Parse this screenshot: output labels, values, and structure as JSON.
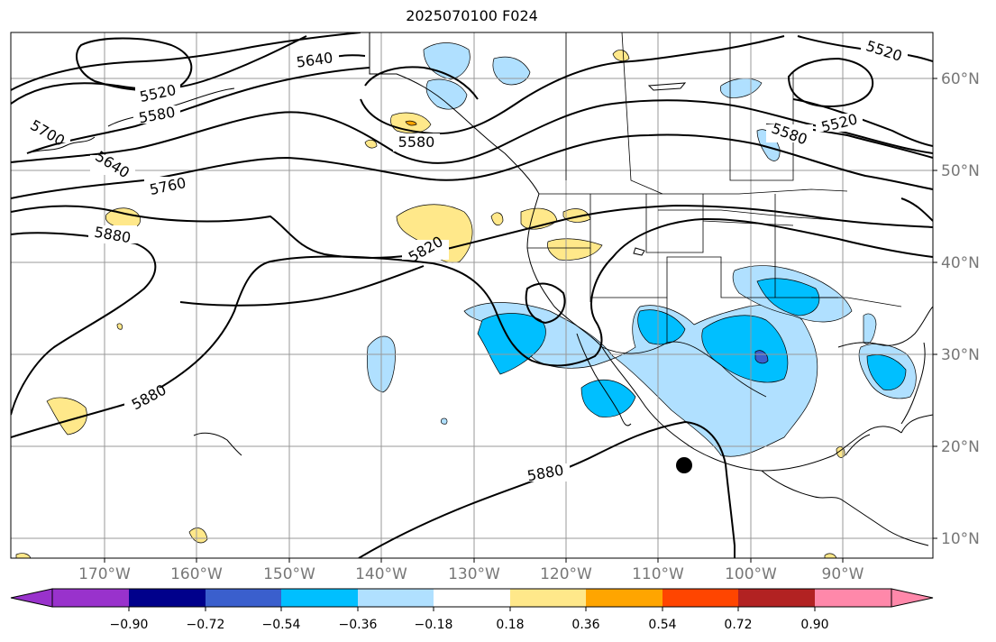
{
  "title": "2025070100 F024",
  "map": {
    "lat_ticks": [
      "60°N",
      "50°N",
      "40°N",
      "30°N",
      "20°N",
      "10°N"
    ],
    "lon_ticks": [
      "170°W",
      "160°W",
      "150°W",
      "140°W",
      "130°W",
      "120°W",
      "110°W",
      "100°W",
      "90°W"
    ],
    "contour_labels": [
      "5640",
      "5520",
      "5580",
      "5700",
      "5640",
      "5760",
      "5880",
      "5580",
      "5820",
      "5880",
      "5880",
      "5520",
      "5580",
      "5520"
    ],
    "marker": "storm-center-dot"
  },
  "colorbar": {
    "tick_labels": [
      "−0.90",
      "−0.72",
      "−0.54",
      "−0.36",
      "−0.18",
      "0.18",
      "0.36",
      "0.54",
      "0.72",
      "0.90"
    ],
    "colors": [
      "#9932cc",
      "#00008b",
      "#3a5fcd",
      "#00bfff",
      "#b0e0ff",
      "#ffffff",
      "#ffe88a",
      "#ffa500",
      "#ff4500",
      "#b22222",
      "#ff88aa"
    ]
  }
}
